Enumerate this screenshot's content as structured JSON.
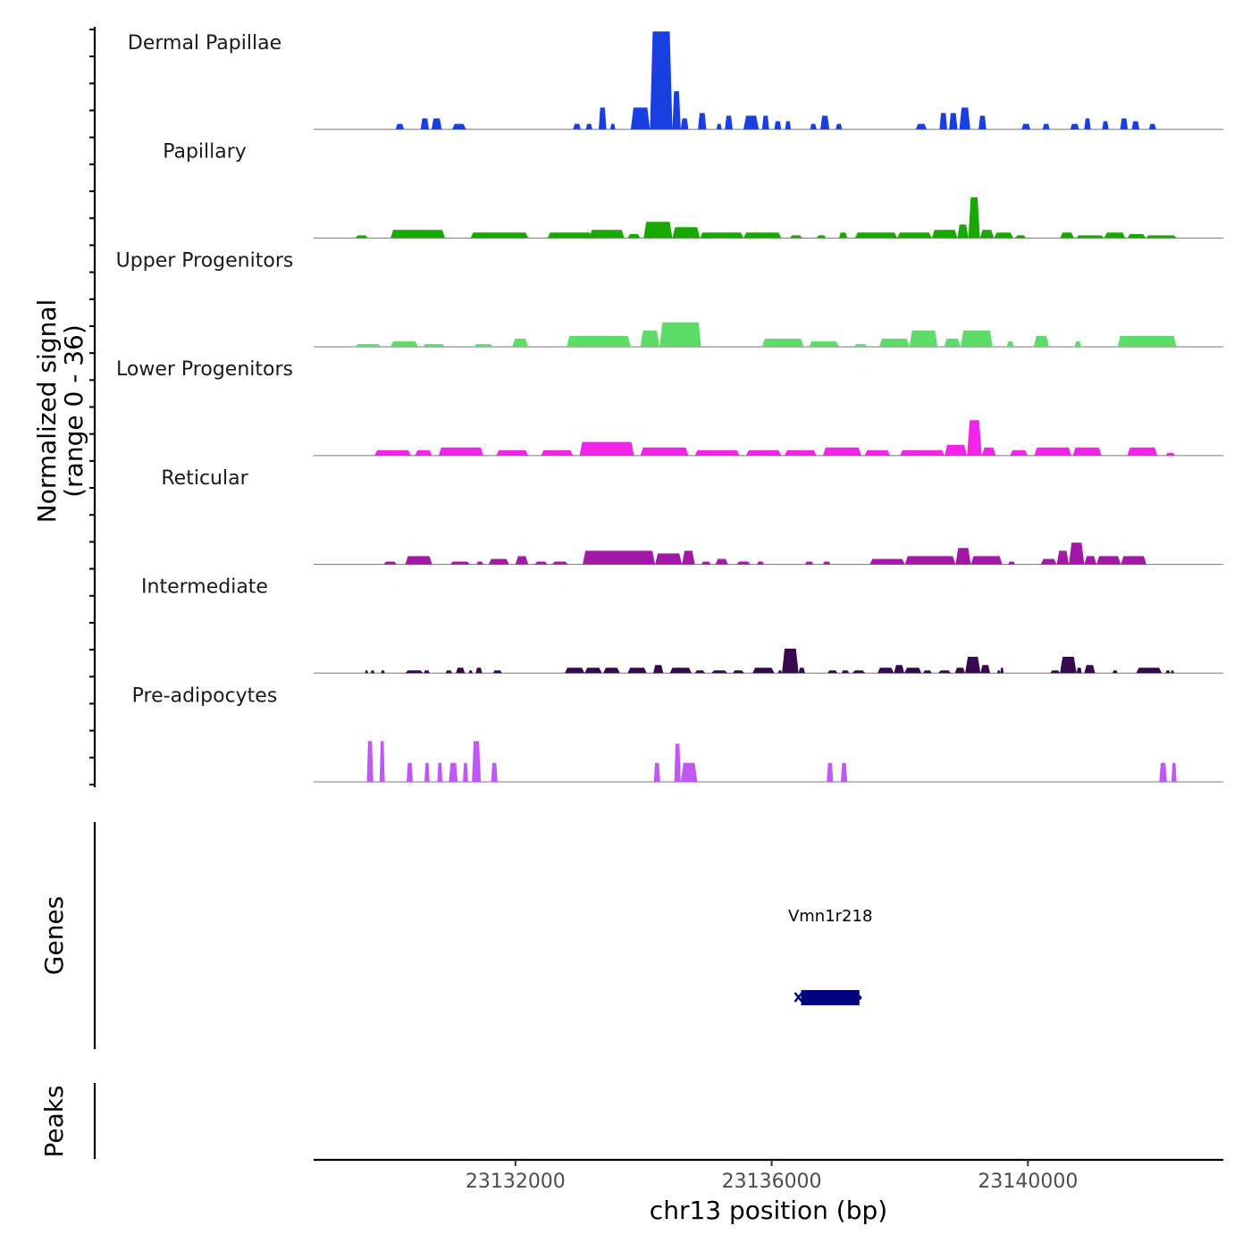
{
  "chart_data": {
    "type": "area",
    "title": "",
    "ylabel": "Normalized signal",
    "ylabel_range": "(range 0 - 36)",
    "xlabel": "chr13 position (bp)",
    "xlim": [
      23128850,
      23143050
    ],
    "ylim": [
      0,
      36
    ],
    "x_ticks": [
      {
        "value": 23132000,
        "label": "23132000"
      },
      {
        "value": 23136000,
        "label": "23136000"
      },
      {
        "value": 23140000,
        "label": "23140000"
      }
    ],
    "tracks": [
      {
        "name": "Dermal Papillae",
        "color": "#1a3fe0",
        "regions": [
          [
            23130130,
            23130260,
            2
          ],
          [
            23130520,
            23130650,
            4
          ],
          [
            23130690,
            23130850,
            4
          ],
          [
            23131010,
            23131230,
            2
          ],
          [
            23132900,
            23133020,
            2
          ],
          [
            23133100,
            23133200,
            2
          ],
          [
            23133300,
            23133420,
            8
          ],
          [
            23133480,
            23133560,
            2
          ],
          [
            23133800,
            23134100,
            8
          ],
          [
            23134100,
            23134450,
            36
          ],
          [
            23134450,
            23134580,
            14
          ],
          [
            23134580,
            23134700,
            4
          ],
          [
            23134850,
            23134980,
            6
          ],
          [
            23135140,
            23135220,
            2
          ],
          [
            23135270,
            23135390,
            5
          ],
          [
            23135560,
            23135800,
            5
          ],
          [
            23135850,
            23135960,
            5
          ],
          [
            23136040,
            23136150,
            3
          ],
          [
            23136210,
            23136300,
            3
          ],
          [
            23136600,
            23136700,
            2
          ],
          [
            23136760,
            23136900,
            5
          ],
          [
            23137000,
            23137100,
            2
          ],
          [
            23138250,
            23138420,
            2
          ],
          [
            23138620,
            23138740,
            6
          ],
          [
            23138770,
            23138900,
            6
          ],
          [
            23138930,
            23139100,
            8
          ],
          [
            23139230,
            23139350,
            5
          ],
          [
            23139900,
            23140040,
            2
          ],
          [
            23140230,
            23140340,
            2
          ],
          [
            23140660,
            23140800,
            2
          ],
          [
            23140880,
            23140980,
            4
          ],
          [
            23141160,
            23141260,
            3
          ],
          [
            23141440,
            23141560,
            4
          ],
          [
            23141620,
            23141740,
            3
          ],
          [
            23141890,
            23142000,
            2
          ]
        ]
      },
      {
        "name": "Papillary",
        "color": "#19a800",
        "regions": [
          [
            23129500,
            23129700,
            1
          ],
          [
            23130050,
            23130900,
            3
          ],
          [
            23131300,
            23132200,
            2
          ],
          [
            23132500,
            23133200,
            2
          ],
          [
            23133150,
            23133700,
            3
          ],
          [
            23133750,
            23133950,
            1.5
          ],
          [
            23134000,
            23134450,
            6
          ],
          [
            23134450,
            23134880,
            4
          ],
          [
            23134880,
            23135560,
            2
          ],
          [
            23135560,
            23136150,
            2
          ],
          [
            23136280,
            23136480,
            1
          ],
          [
            23136700,
            23136850,
            1
          ],
          [
            23137050,
            23137180,
            2
          ],
          [
            23137300,
            23137960,
            2
          ],
          [
            23137960,
            23138500,
            2
          ],
          [
            23138500,
            23138900,
            3
          ],
          [
            23138900,
            23139070,
            5
          ],
          [
            23139070,
            23139250,
            15
          ],
          [
            23139250,
            23139470,
            3
          ],
          [
            23139470,
            23139770,
            2
          ],
          [
            23139800,
            23139970,
            1
          ],
          [
            23140500,
            23140720,
            2
          ],
          [
            23140750,
            23141190,
            1
          ],
          [
            23141190,
            23141520,
            2
          ],
          [
            23141550,
            23141840,
            1.5
          ],
          [
            23141840,
            23142320,
            1
          ]
        ]
      },
      {
        "name": "Upper Progenitors",
        "color": "#5ddc6a",
        "regions": [
          [
            23129500,
            23129900,
            1
          ],
          [
            23130050,
            23130480,
            2
          ],
          [
            23130550,
            23130900,
            1
          ],
          [
            23131350,
            23131650,
            1
          ],
          [
            23131950,
            23132200,
            3
          ],
          [
            23132800,
            23133800,
            4
          ],
          [
            23133950,
            23134250,
            6
          ],
          [
            23134250,
            23134900,
            9
          ],
          [
            23135850,
            23136500,
            3
          ],
          [
            23136580,
            23137050,
            2
          ],
          [
            23137280,
            23137500,
            1
          ],
          [
            23137680,
            23138150,
            3
          ],
          [
            23138150,
            23138590,
            6
          ],
          [
            23138690,
            23138950,
            3
          ],
          [
            23138950,
            23139450,
            6
          ],
          [
            23139670,
            23139780,
            2
          ],
          [
            23140090,
            23140330,
            4
          ],
          [
            23140730,
            23140830,
            2
          ],
          [
            23141400,
            23142320,
            4
          ]
        ]
      },
      {
        "name": "Lower Progenitors",
        "color": "#f224e8",
        "regions": [
          [
            23129800,
            23130370,
            2
          ],
          [
            23130430,
            23130700,
            2
          ],
          [
            23130800,
            23131500,
            3
          ],
          [
            23131700,
            23132200,
            2
          ],
          [
            23132400,
            23132900,
            2
          ],
          [
            23133000,
            23133850,
            5
          ],
          [
            23133950,
            23134700,
            3
          ],
          [
            23134800,
            23135500,
            2
          ],
          [
            23135600,
            23136150,
            2
          ],
          [
            23136200,
            23136700,
            2
          ],
          [
            23136800,
            23137400,
            3
          ],
          [
            23137450,
            23137850,
            2
          ],
          [
            23138000,
            23138700,
            2
          ],
          [
            23138700,
            23139050,
            4
          ],
          [
            23139050,
            23139280,
            13
          ],
          [
            23139280,
            23139500,
            3
          ],
          [
            23139720,
            23140000,
            2
          ],
          [
            23140100,
            23140680,
            3
          ],
          [
            23140700,
            23141150,
            3
          ],
          [
            23141550,
            23142020,
            3
          ],
          [
            23142150,
            23142300,
            1
          ]
        ]
      },
      {
        "name": "Reticular",
        "color": "#a318a8",
        "regions": [
          [
            23129940,
            23130150,
            1
          ],
          [
            23130280,
            23130700,
            3
          ],
          [
            23130980,
            23131290,
            1
          ],
          [
            23131390,
            23131500,
            1
          ],
          [
            23131580,
            23131900,
            2
          ],
          [
            23132000,
            23132200,
            3
          ],
          [
            23132300,
            23132500,
            1
          ],
          [
            23132570,
            23132820,
            1
          ],
          [
            23133050,
            23134180,
            5
          ],
          [
            23134180,
            23134600,
            4
          ],
          [
            23134600,
            23134800,
            5
          ],
          [
            23134900,
            23135050,
            1
          ],
          [
            23135120,
            23135320,
            2
          ],
          [
            23135450,
            23135670,
            1
          ],
          [
            23135770,
            23135880,
            1
          ],
          [
            23136520,
            23136650,
            1
          ],
          [
            23136800,
            23136920,
            1
          ],
          [
            23137530,
            23138080,
            2
          ],
          [
            23138080,
            23138870,
            3
          ],
          [
            23138870,
            23139110,
            6
          ],
          [
            23139110,
            23139600,
            3
          ],
          [
            23139690,
            23139800,
            1
          ],
          [
            23140200,
            23140450,
            2
          ],
          [
            23140450,
            23140640,
            5
          ],
          [
            23140640,
            23140880,
            8
          ],
          [
            23140880,
            23141070,
            3
          ],
          [
            23141070,
            23141450,
            3
          ],
          [
            23141450,
            23141850,
            3
          ]
        ]
      },
      {
        "name": "Intermediate",
        "color": "#36094f",
        "regions": [
          [
            23129650,
            23129700,
            1
          ],
          [
            23129740,
            23129800,
            1
          ],
          [
            23129900,
            23129960,
            1
          ],
          [
            23130280,
            23130560,
            1
          ],
          [
            23130570,
            23130660,
            1
          ],
          [
            23130910,
            23131010,
            1
          ],
          [
            23131070,
            23131210,
            2
          ],
          [
            23131270,
            23131330,
            1
          ],
          [
            23131380,
            23131480,
            2
          ],
          [
            23131650,
            23131790,
            1
          ],
          [
            23132770,
            23133080,
            2
          ],
          [
            23133080,
            23133350,
            2
          ],
          [
            23133370,
            23133630,
            2
          ],
          [
            23133750,
            23134050,
            2
          ],
          [
            23134150,
            23134310,
            3
          ],
          [
            23134410,
            23134750,
            2
          ],
          [
            23134800,
            23134960,
            1
          ],
          [
            23135060,
            23135310,
            1
          ],
          [
            23135390,
            23135570,
            1
          ],
          [
            23135700,
            23136040,
            2
          ],
          [
            23136100,
            23136160,
            1
          ],
          [
            23136160,
            23136420,
            9
          ],
          [
            23136420,
            23136520,
            2
          ],
          [
            23136870,
            23137030,
            1
          ],
          [
            23137090,
            23137210,
            1
          ],
          [
            23137260,
            23137460,
            1
          ],
          [
            23137650,
            23137910,
            2
          ],
          [
            23137910,
            23138070,
            3
          ],
          [
            23138070,
            23138340,
            2
          ],
          [
            23138360,
            23138500,
            1
          ],
          [
            23138600,
            23138800,
            1
          ],
          [
            23138860,
            23139020,
            2
          ],
          [
            23139020,
            23139260,
            6
          ],
          [
            23139260,
            23139410,
            3
          ],
          [
            23139520,
            23139570,
            1
          ],
          [
            23139570,
            23139620,
            2
          ],
          [
            23140350,
            23140500,
            1
          ],
          [
            23140500,
            23140760,
            6
          ],
          [
            23140760,
            23140840,
            2
          ],
          [
            23140880,
            23141050,
            3
          ],
          [
            23141320,
            23141400,
            1
          ],
          [
            23141690,
            23142090,
            2
          ],
          [
            23142150,
            23142220,
            1
          ],
          [
            23142230,
            23142280,
            1
          ]
        ]
      },
      {
        "name": "Pre-adipocytes",
        "color": "#c058f5",
        "regions": [
          [
            23129680,
            23129780,
            15
          ],
          [
            23129880,
            23129960,
            15
          ],
          [
            23130300,
            23130400,
            7
          ],
          [
            23130580,
            23130660,
            7
          ],
          [
            23130780,
            23130860,
            7
          ],
          [
            23130960,
            23131100,
            7
          ],
          [
            23131180,
            23131260,
            7
          ],
          [
            23131320,
            23131460,
            15
          ],
          [
            23131620,
            23131720,
            7
          ],
          [
            23134160,
            23134260,
            7
          ],
          [
            23134480,
            23134580,
            14
          ],
          [
            23134580,
            23134840,
            7
          ],
          [
            23136860,
            23136960,
            7
          ],
          [
            23137080,
            23137180,
            7
          ],
          [
            23142050,
            23142170,
            7
          ],
          [
            23142240,
            23142320,
            7
          ]
        ]
      }
    ],
    "genes": [
      {
        "name": "Vmn1r218",
        "start": 23136460,
        "end": 23137370,
        "strand": "-"
      }
    ],
    "genes_label": "Genes",
    "peaks_label": "Peaks"
  }
}
